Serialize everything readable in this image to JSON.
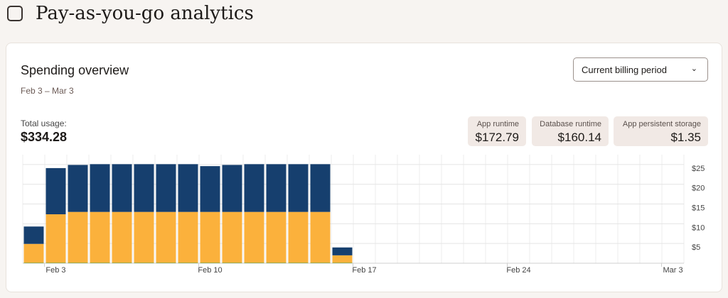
{
  "header": {
    "title": "Pay-as-you-go analytics"
  },
  "card": {
    "title": "Spending overview",
    "period": "Feb 3 – Mar 3",
    "dropdown": "Current billing period",
    "total_label": "Total usage:",
    "total_value": "$334.28",
    "breakdown": [
      {
        "label": "App runtime",
        "value": "$172.79"
      },
      {
        "label": "Database runtime",
        "value": "$160.14"
      },
      {
        "label": "App persistent storage",
        "value": "$1.35"
      }
    ]
  },
  "chart_data": {
    "type": "stacked_bar",
    "categories": [
      null,
      "Feb 3",
      null,
      null,
      null,
      null,
      null,
      null,
      "Feb 10",
      null,
      null,
      null,
      null,
      null,
      null,
      "Feb 17",
      null,
      null,
      null,
      null,
      null,
      null,
      "Feb 24",
      null,
      null,
      null,
      null,
      null,
      null,
      "Mar 3"
    ],
    "series": [
      {
        "name": "App persistent storage",
        "color": "#3fa34d",
        "values": [
          0.1,
          0.1,
          0.1,
          0.1,
          0.1,
          0.1,
          0.1,
          0.1,
          0.1,
          0.1,
          0.1,
          0.1,
          0.1,
          0.1,
          0.1,
          null,
          null,
          null,
          null,
          null,
          null,
          null,
          null,
          null,
          null,
          null,
          null,
          null,
          null,
          null
        ]
      },
      {
        "name": "App runtime",
        "color": "#fbb13c",
        "values": [
          4.8,
          12.3,
          12.9,
          12.9,
          12.9,
          12.9,
          12.9,
          12.9,
          12.9,
          12.9,
          12.9,
          12.9,
          12.9,
          12.9,
          1.9,
          null,
          null,
          null,
          null,
          null,
          null,
          null,
          null,
          null,
          null,
          null,
          null,
          null,
          null,
          null
        ]
      },
      {
        "name": "Database runtime",
        "color": "#163f6e",
        "values": [
          4.4,
          11.7,
          11.9,
          12.1,
          12.1,
          12.1,
          12.1,
          12.1,
          11.6,
          11.9,
          12.1,
          12.1,
          12.1,
          12.1,
          2.0,
          null,
          null,
          null,
          null,
          null,
          null,
          null,
          null,
          null,
          null,
          null,
          null,
          null,
          null,
          null
        ]
      }
    ],
    "ylim": [
      0,
      27.5
    ],
    "yticks": [
      {
        "value": 5,
        "label": "$5"
      },
      {
        "value": 10,
        "label": "$10"
      },
      {
        "value": 15,
        "label": "$15"
      },
      {
        "value": 20,
        "label": "$20"
      },
      {
        "value": 25,
        "label": "$25"
      }
    ],
    "grid": true
  }
}
